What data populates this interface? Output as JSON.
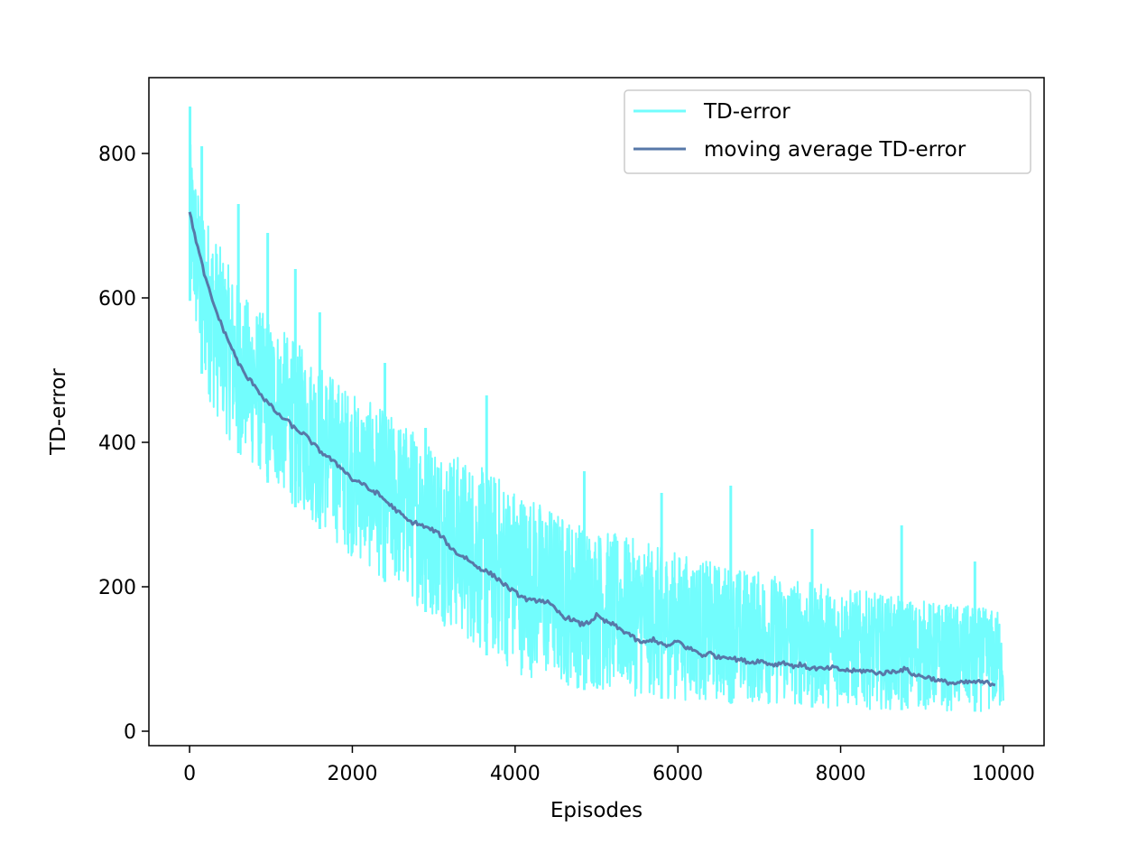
{
  "chart_data": {
    "type": "line",
    "title": "",
    "xlabel": "Episodes",
    "ylabel": "TD-error",
    "xlim": [
      -500,
      10500
    ],
    "ylim": [
      -20,
      905
    ],
    "xticks": [
      0,
      2000,
      4000,
      6000,
      8000,
      10000
    ],
    "yticks": [
      0,
      200,
      400,
      600,
      800
    ],
    "grid": false,
    "legend_position": "top-right",
    "series": [
      {
        "name": "TD-error",
        "color": "#72fdfd",
        "upper_envelope": {
          "x": [
            0,
            100,
            200,
            300,
            500,
            700,
            900,
            1100,
            1300,
            1500,
            1800,
            2000,
            2300,
            2600,
            2900,
            3200,
            3500,
            3800,
            4000,
            4300,
            4600,
            4900,
            5200,
            5500,
            5800,
            6100,
            6400,
            6700,
            7000,
            7300,
            7600,
            7900,
            8200,
            8500,
            8800,
            9100,
            9400,
            9700,
            9900
          ],
          "y": [
            820,
            760,
            720,
            690,
            640,
            600,
            580,
            560,
            540,
            520,
            490,
            470,
            450,
            430,
            410,
            390,
            370,
            355,
            340,
            320,
            300,
            285,
            275,
            265,
            255,
            245,
            235,
            228,
            222,
            215,
            208,
            202,
            196,
            190,
            185,
            180,
            176,
            172,
            168
          ]
        },
        "lower_envelope": {
          "x": [
            0,
            100,
            200,
            300,
            500,
            700,
            900,
            1100,
            1300,
            1500,
            1800,
            2000,
            2300,
            2600,
            2900,
            3200,
            3500,
            3800,
            4000,
            4300,
            4600,
            4900,
            5200,
            5500,
            5800,
            6100,
            6400,
            6700,
            7000,
            7300,
            7600,
            7900,
            8200,
            8500,
            8800,
            9100,
            9400,
            9700,
            9900
          ],
          "y": [
            600,
            520,
            470,
            440,
            400,
            370,
            350,
            330,
            310,
            290,
            260,
            240,
            215,
            190,
            165,
            140,
            115,
            95,
            80,
            70,
            62,
            56,
            52,
            48,
            45,
            42,
            40,
            38,
            36,
            34,
            33,
            32,
            31,
            30,
            29,
            28,
            27,
            27,
            26
          ]
        },
        "spikes": [
          {
            "x": 5,
            "y": 865
          },
          {
            "x": 150,
            "y": 810
          },
          {
            "x": 600,
            "y": 730
          },
          {
            "x": 960,
            "y": 690
          },
          {
            "x": 1300,
            "y": 640
          },
          {
            "x": 1600,
            "y": 580
          },
          {
            "x": 2400,
            "y": 510
          },
          {
            "x": 2900,
            "y": 420
          },
          {
            "x": 3650,
            "y": 465
          },
          {
            "x": 4850,
            "y": 360
          },
          {
            "x": 5800,
            "y": 330
          },
          {
            "x": 6650,
            "y": 340
          },
          {
            "x": 7650,
            "y": 280
          },
          {
            "x": 8750,
            "y": 285
          },
          {
            "x": 9650,
            "y": 235
          }
        ]
      },
      {
        "name": "moving average TD-error",
        "color": "#5778a8",
        "x": [
          0,
          100,
          200,
          300,
          400,
          500,
          600,
          700,
          800,
          900,
          1000,
          1100,
          1200,
          1300,
          1400,
          1500,
          1600,
          1700,
          1800,
          1900,
          2000,
          2100,
          2200,
          2300,
          2400,
          2500,
          2600,
          2700,
          2800,
          2900,
          3000,
          3100,
          3200,
          3300,
          3400,
          3500,
          3600,
          3700,
          3800,
          3900,
          4000,
          4100,
          4200,
          4300,
          4400,
          4500,
          4600,
          4700,
          4800,
          4900,
          5000,
          5100,
          5200,
          5300,
          5400,
          5500,
          5600,
          5700,
          5800,
          5900,
          6000,
          6100,
          6200,
          6300,
          6400,
          6500,
          6600,
          6700,
          6800,
          6900,
          7000,
          7100,
          7200,
          7300,
          7400,
          7500,
          7600,
          7700,
          7800,
          7900,
          8000,
          8100,
          8200,
          8300,
          8400,
          8500,
          8600,
          8700,
          8800,
          8900,
          9000,
          9100,
          9200,
          9300,
          9400,
          9500,
          9600,
          9700,
          9800,
          9900
        ],
        "y": [
          718,
          670,
          625,
          590,
          560,
          535,
          510,
          490,
          480,
          462,
          450,
          437,
          430,
          418,
          412,
          400,
          388,
          380,
          370,
          362,
          348,
          345,
          335,
          330,
          320,
          310,
          300,
          290,
          288,
          282,
          278,
          270,
          255,
          245,
          240,
          230,
          224,
          218,
          210,
          200,
          192,
          185,
          180,
          182,
          178,
          168,
          158,
          155,
          148,
          150,
          160,
          152,
          148,
          140,
          135,
          125,
          122,
          128,
          120,
          118,
          125,
          116,
          112,
          105,
          108,
          102,
          104,
          100,
          98,
          95,
          98,
          94,
          92,
          96,
          90,
          92,
          88,
          87,
          86,
          88,
          85,
          84,
          83,
          84,
          82,
          80,
          82,
          84,
          86,
          78,
          76,
          74,
          70,
          68,
          66,
          67,
          68,
          68,
          67,
          65
        ]
      }
    ]
  }
}
